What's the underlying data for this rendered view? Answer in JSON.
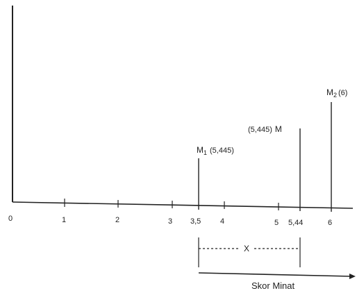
{
  "ink_color": "#222222",
  "axis": {
    "ticks": [
      "0",
      "1",
      "2",
      "3",
      "3,5",
      "4",
      "5",
      "5,44",
      "6"
    ],
    "caption": "Skor Minat"
  },
  "markers": {
    "m1": {
      "letter": "M",
      "sub": "1",
      "value": "(5,445)"
    },
    "m": {
      "value": "(5,445)",
      "letter": "M"
    },
    "m2": {
      "letter": "M",
      "sub": "2",
      "value": "(6)"
    }
  },
  "interval": {
    "label": "X"
  }
}
